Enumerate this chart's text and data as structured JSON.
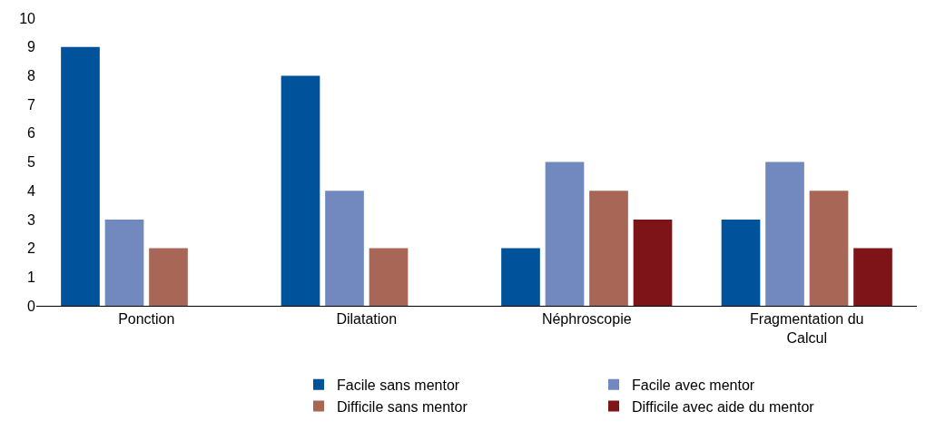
{
  "chart_data": {
    "type": "bar",
    "categories": [
      "Ponction",
      "Dilatation",
      "Néphroscopie",
      "Fragmentation du Calcul"
    ],
    "series": [
      {
        "name": "Facile sans mentor",
        "color": "#00529b",
        "values": [
          9,
          8,
          2,
          3
        ]
      },
      {
        "name": "Facile avec mentor",
        "color": "#7189bf",
        "values": [
          3,
          4,
          5,
          5
        ]
      },
      {
        "name": "Difficile sans mentor",
        "color": "#a86756",
        "values": [
          2,
          2,
          4,
          4
        ]
      },
      {
        "name": "Difficile avec aide du mentor",
        "color": "#7f1418",
        "values": [
          null,
          null,
          3,
          2
        ]
      }
    ],
    "ylim": [
      0,
      10
    ],
    "yticks": [
      0,
      1,
      2,
      3,
      4,
      5,
      6,
      7,
      8,
      9,
      10
    ],
    "grid": false,
    "legend": "bottom"
  }
}
